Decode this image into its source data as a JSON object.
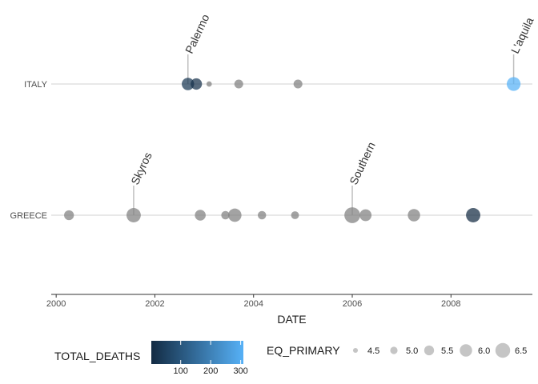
{
  "chart_data": {
    "type": "scatter",
    "xlabel": "DATE",
    "xlim": [
      1999.9,
      2009.65
    ],
    "x_ticks": [
      "2000",
      "2002",
      "2004",
      "2006",
      "2008"
    ],
    "categories": [
      "ITALY",
      "GREECE"
    ],
    "points": [
      {
        "country": "ITALY",
        "x": 2002.67,
        "eq_primary": 6.0,
        "total_deaths": 30
      },
      {
        "country": "ITALY",
        "x": 2002.84,
        "eq_primary": 5.8,
        "total_deaths": 15
      },
      {
        "country": "ITALY",
        "x": 2003.1,
        "eq_primary": 4.6,
        "total_deaths": null
      },
      {
        "country": "ITALY",
        "x": 2003.7,
        "eq_primary": 5.3,
        "total_deaths": null
      },
      {
        "country": "ITALY",
        "x": 2004.9,
        "eq_primary": 5.3,
        "total_deaths": null
      },
      {
        "country": "ITALY",
        "x": 2009.27,
        "eq_primary": 6.3,
        "total_deaths": 309
      },
      {
        "country": "GREECE",
        "x": 2000.26,
        "eq_primary": 5.5,
        "total_deaths": null
      },
      {
        "country": "GREECE",
        "x": 2001.57,
        "eq_primary": 6.4,
        "total_deaths": null
      },
      {
        "country": "GREECE",
        "x": 2002.92,
        "eq_primary": 5.7,
        "total_deaths": null
      },
      {
        "country": "GREECE",
        "x": 2003.43,
        "eq_primary": 5.2,
        "total_deaths": null
      },
      {
        "country": "GREECE",
        "x": 2003.62,
        "eq_primary": 6.2,
        "total_deaths": null
      },
      {
        "country": "GREECE",
        "x": 2004.17,
        "eq_primary": 5.2,
        "total_deaths": null
      },
      {
        "country": "GREECE",
        "x": 2004.84,
        "eq_primary": 5.1,
        "total_deaths": null
      },
      {
        "country": "GREECE",
        "x": 2006.0,
        "eq_primary": 6.7,
        "total_deaths": null
      },
      {
        "country": "GREECE",
        "x": 2006.27,
        "eq_primary": 5.9,
        "total_deaths": null
      },
      {
        "country": "GREECE",
        "x": 2007.25,
        "eq_primary": 6.0,
        "total_deaths": null
      },
      {
        "country": "GREECE",
        "x": 2008.45,
        "eq_primary": 6.4,
        "total_deaths": 2
      }
    ],
    "annotations": [
      {
        "text": "Palermo",
        "country": "ITALY",
        "x": 2002.67
      },
      {
        "text": "L'aquila",
        "country": "ITALY",
        "x": 2009.27
      },
      {
        "text": "Skyros",
        "country": "GREECE",
        "x": 2001.57
      },
      {
        "text": "Southern",
        "country": "GREECE",
        "x": 2006.0
      }
    ],
    "legend": {
      "position": "bottom",
      "color": {
        "title": "TOTAL_DEATHS",
        "range": [
          2,
          309
        ],
        "ticks": [
          100,
          200,
          300
        ],
        "low_color": "#132B43",
        "high_color": "#56B1F7"
      },
      "size": {
        "title": "EQ_PRIMARY",
        "ticks": [
          "4.5",
          "5.0",
          "5.5",
          "6.0",
          "6.5"
        ]
      }
    },
    "na_color": "#7F7F7F",
    "grid": "horizontal-major"
  }
}
